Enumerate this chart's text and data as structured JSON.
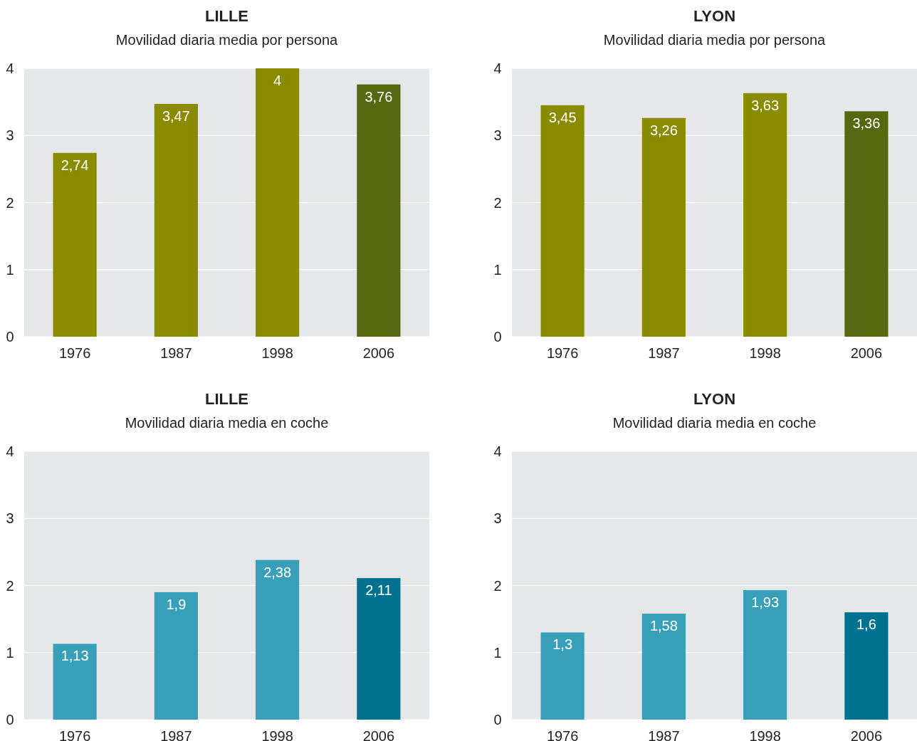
{
  "chart_data": [
    {
      "type": "bar",
      "title": "LILLE",
      "subtitle": "Movilidad diaria media por persona",
      "categories": [
        "1976",
        "1987",
        "1998",
        "2006"
      ],
      "values": [
        2.74,
        3.47,
        4,
        3.76
      ],
      "colors": [
        "#8b8b00",
        "#8b8b00",
        "#8b8b00",
        "#55680f"
      ],
      "value_labels": [
        "2,74",
        "3,47",
        "4",
        "3,76"
      ],
      "ylim": [
        0,
        4
      ],
      "yticks": [
        0,
        1,
        2,
        3,
        4
      ],
      "grid": "y"
    },
    {
      "type": "bar",
      "title": "LYON",
      "subtitle": "Movilidad diaria media por persona",
      "categories": [
        "1976",
        "1987",
        "1998",
        "2006"
      ],
      "values": [
        3.45,
        3.26,
        3.63,
        3.36
      ],
      "colors": [
        "#8b8b00",
        "#8b8b00",
        "#8b8b00",
        "#55680f"
      ],
      "value_labels": [
        "3,45",
        "3,26",
        "3,63",
        "3,36"
      ],
      "ylim": [
        0,
        4
      ],
      "yticks": [
        0,
        1,
        2,
        3,
        4
      ],
      "grid": "y"
    },
    {
      "type": "bar",
      "title": "LILLE",
      "subtitle": "Movilidad diaria media en coche",
      "categories": [
        "1976",
        "1987",
        "1998",
        "2006"
      ],
      "values": [
        1.13,
        1.9,
        2.38,
        2.11
      ],
      "colors": [
        "#389fb8",
        "#389fb8",
        "#389fb8",
        "#00718f"
      ],
      "value_labels": [
        "1,13",
        "1,9",
        "2,38",
        "2,11"
      ],
      "ylim": [
        0,
        4
      ],
      "yticks": [
        0,
        1,
        2,
        3,
        4
      ],
      "grid": "y"
    },
    {
      "type": "bar",
      "title": "LYON",
      "subtitle": "Movilidad diaria media en coche",
      "categories": [
        "1976",
        "1987",
        "1998",
        "2006"
      ],
      "values": [
        1.3,
        1.58,
        1.93,
        1.6
      ],
      "colors": [
        "#389fb8",
        "#389fb8",
        "#389fb8",
        "#00718f"
      ],
      "value_labels": [
        "1,3",
        "1,58",
        "1,93",
        "1,6"
      ],
      "ylim": [
        0,
        4
      ],
      "yticks": [
        0,
        1,
        2,
        3,
        4
      ],
      "grid": "y"
    }
  ]
}
